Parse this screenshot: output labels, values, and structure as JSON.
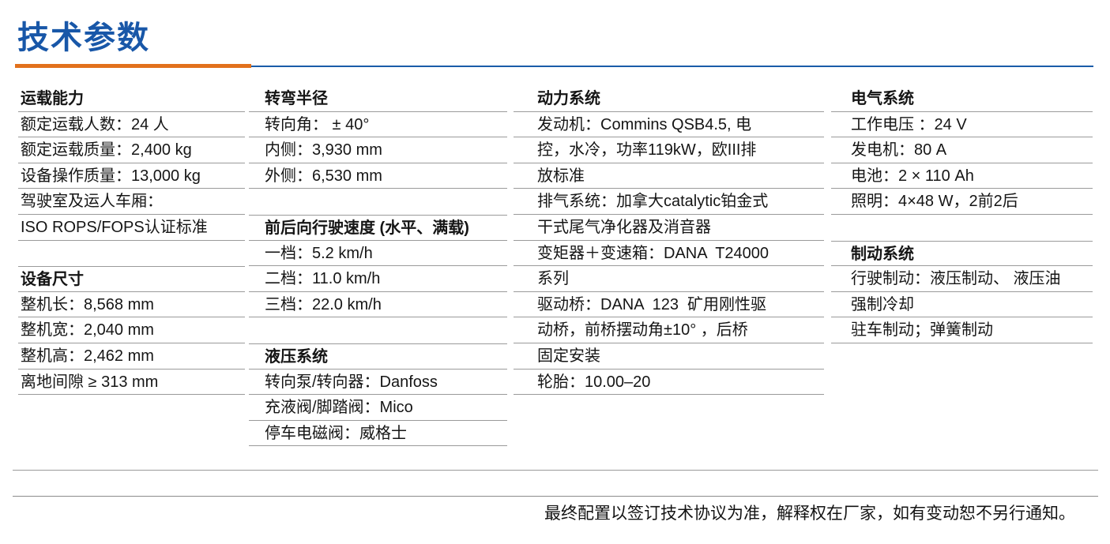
{
  "page_title": "技术参数",
  "accent_colors": {
    "title_blue": "#1857A8",
    "rule_orange": "#E2711C",
    "rule_blue": "#1A5CA8",
    "separator_gray": "#9a9a9a"
  },
  "table": {
    "columns": [
      {
        "rows": [
          {
            "t": "header",
            "text": "运载能力"
          },
          {
            "t": "item",
            "text": "额定运载人数：24 人"
          },
          {
            "t": "item",
            "text": "额定运载质量：2,400 kg"
          },
          {
            "t": "item",
            "text": "设备操作质量：13,000 kg"
          },
          {
            "t": "item",
            "text": "驾驶室及运人车厢："
          },
          {
            "t": "item",
            "text": "ISO ROPS/FOPS认证标准"
          },
          {
            "t": "gap",
            "text": ""
          },
          {
            "t": "header",
            "text": "设备尺寸"
          },
          {
            "t": "item",
            "text": "整机长：8,568 mm"
          },
          {
            "t": "item",
            "text": "整机宽：2,040 mm"
          },
          {
            "t": "item",
            "text": "整机高：2,462 mm"
          },
          {
            "t": "item",
            "text": "离地间隙 ≥ 313 mm"
          }
        ]
      },
      {
        "rows": [
          {
            "t": "header",
            "text": "转弯半径"
          },
          {
            "t": "item",
            "text": "转向角： ± 40°"
          },
          {
            "t": "item",
            "text": "内侧：3,930 mm"
          },
          {
            "t": "item",
            "text": "外侧：6,530 mm"
          },
          {
            "t": "gap",
            "text": ""
          },
          {
            "t": "header",
            "text": "前后向行驶速度 (水平、满载)"
          },
          {
            "t": "item",
            "text": "一档：5.2 km/h"
          },
          {
            "t": "item",
            "text": "二档：11.0 km/h"
          },
          {
            "t": "item",
            "text": "三档：22.0 km/h"
          },
          {
            "t": "gap",
            "text": ""
          },
          {
            "t": "header",
            "text": "液压系统"
          },
          {
            "t": "item",
            "text": "转向泵/转向器：Danfoss"
          },
          {
            "t": "item",
            "text": "充液阀/脚踏阀：Mico"
          },
          {
            "t": "item",
            "text": "停车电磁阀：威格士"
          }
        ]
      },
      {
        "rows": [
          {
            "t": "header",
            "text": "动力系统"
          },
          {
            "t": "item",
            "text": "发动机：Commins QSB4.5, 电"
          },
          {
            "t": "item",
            "text": "控，水冷，功率119kW，欧III排"
          },
          {
            "t": "item",
            "text": "放标准"
          },
          {
            "t": "item",
            "text": "排气系统：加拿大catalytic铂金式"
          },
          {
            "t": "item",
            "text": "干式尾气净化器及消音器"
          },
          {
            "t": "item",
            "text": "变矩器＋变速箱：DANA  T24000"
          },
          {
            "t": "item",
            "text": "系列"
          },
          {
            "t": "item",
            "text": "驱动桥：DANA  123  矿用刚性驱"
          },
          {
            "t": "item",
            "text": "动桥，前桥摆动角±10° ，后桥"
          },
          {
            "t": "item",
            "text": "固定安装"
          },
          {
            "t": "item",
            "text": "轮胎：10.00–20"
          }
        ]
      },
      {
        "rows": [
          {
            "t": "header",
            "text": "电气系统"
          },
          {
            "t": "item",
            "text": "工作电压 ：24 V"
          },
          {
            "t": "item",
            "text": "发电机：80 A"
          },
          {
            "t": "item",
            "text": "电池：2 × 110 Ah"
          },
          {
            "t": "item",
            "text": "照明：4×48 W，2前2后"
          },
          {
            "t": "gap",
            "text": ""
          },
          {
            "t": "header",
            "text": "制动系统"
          },
          {
            "t": "item",
            "text": "行驶制动：液压制动、 液压油"
          },
          {
            "t": "item",
            "text": "强制冷却"
          },
          {
            "t": "item",
            "text": "驻车制动；弹簧制动"
          }
        ]
      }
    ]
  },
  "footer": {
    "note": "最终配置以签订技术协议为准，解释权在厂家，如有变动恕不另行通知。"
  }
}
